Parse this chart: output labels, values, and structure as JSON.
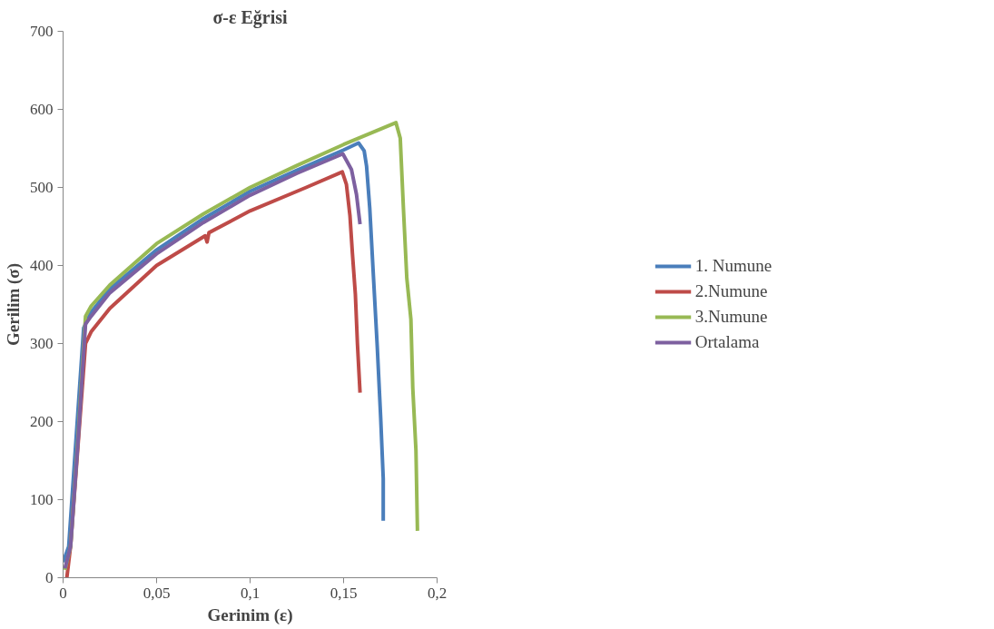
{
  "chart_data": {
    "type": "line",
    "title": "σ-ε Eğrisi",
    "xlabel": "Gerinim (ε)",
    "ylabel": "Gerilim (σ)",
    "xlim": [
      0,
      0.2
    ],
    "ylim": [
      0,
      700
    ],
    "xticks": [
      0,
      {
        "value": 0.05,
        "label": "0,05"
      },
      {
        "value": 0.1,
        "label": "0,1"
      },
      {
        "value": 0.15,
        "label": "0,15"
      },
      {
        "value": 0.2,
        "label": "0,2"
      }
    ],
    "yticks": [
      0,
      100,
      200,
      300,
      400,
      500,
      600,
      700
    ],
    "grid": false,
    "legend": "right",
    "marker": "none",
    "line_style": "solid",
    "series": [
      {
        "name": "1. Numune",
        "color": "#4a7ebb",
        "x": [
          0,
          0.003,
          0.007,
          0.011,
          0.015,
          0.025,
          0.05,
          0.075,
          0.1,
          0.125,
          0.15,
          0.158,
          0.161,
          0.1623,
          0.164,
          0.1658,
          0.168,
          0.1698,
          0.1712,
          0.1712
        ],
        "values": [
          20,
          40,
          180,
          320,
          340,
          370,
          420,
          460,
          495,
          522,
          548,
          557,
          547,
          527,
          473,
          393,
          296,
          207,
          127,
          73
        ]
      },
      {
        "name": "2.Numune",
        "color": "#be4b48",
        "x": [
          0.002,
          0.004,
          0.008,
          0.012,
          0.015,
          0.025,
          0.05,
          0.076,
          0.077,
          0.078,
          0.1,
          0.13,
          0.1493,
          0.1515,
          0.1534,
          0.1547,
          0.1563,
          0.1574,
          0.1588
        ],
        "values": [
          0,
          40,
          170,
          300,
          315,
          345,
          400,
          438,
          430,
          442,
          470,
          500,
          520,
          504,
          464,
          416,
          363,
          300,
          237
        ]
      },
      {
        "name": "3.Numune",
        "color": "#98b954",
        "x": [
          0.001,
          0.004,
          0.008,
          0.012,
          0.015,
          0.025,
          0.05,
          0.075,
          0.1,
          0.125,
          0.15,
          0.178,
          0.1803,
          0.182,
          0.1838,
          0.186,
          0.187,
          0.1887,
          0.1895
        ],
        "values": [
          10,
          40,
          180,
          335,
          348,
          375,
          428,
          466,
          500,
          528,
          555,
          583,
          563,
          473,
          384,
          331,
          243,
          163,
          60
        ]
      },
      {
        "name": "Ortalama",
        "color": "#7d60a0",
        "x": [
          0.001,
          0.004,
          0.008,
          0.012,
          0.015,
          0.025,
          0.05,
          0.075,
          0.1,
          0.125,
          0.1496,
          0.1542,
          0.1569,
          0.1588
        ],
        "values": [
          12,
          40,
          175,
          325,
          335,
          365,
          415,
          455,
          490,
          518,
          543,
          523,
          491,
          453
        ]
      }
    ]
  }
}
